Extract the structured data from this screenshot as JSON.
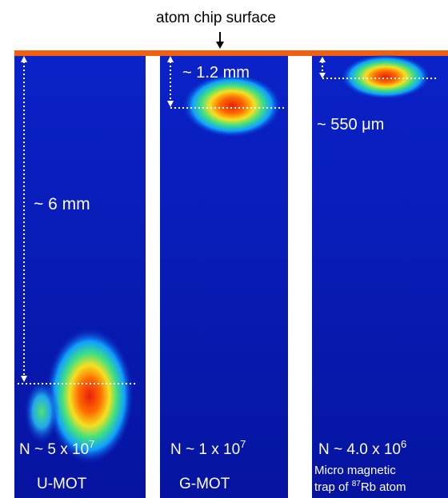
{
  "header": {
    "title": "atom chip surface"
  },
  "panels": [
    {
      "distance": "~ 6 mm",
      "atom_number": {
        "base": "N ~ 5 x 10",
        "exponent": "7"
      },
      "label": "U-MOT"
    },
    {
      "distance": "~ 1.2 mm",
      "atom_number": {
        "base": "N ~ 1 x 10",
        "exponent": "7"
      },
      "label": "G-MOT"
    },
    {
      "distance": "~ 550 μm",
      "atom_number": {
        "base": "N ~ 4.0 x 10",
        "exponent": "6"
      },
      "label_lines": [
        "Micro magnetic",
        {
          "before": "trap of ",
          "sup": "87",
          "after": "Rb atom"
        }
      ]
    }
  ]
}
